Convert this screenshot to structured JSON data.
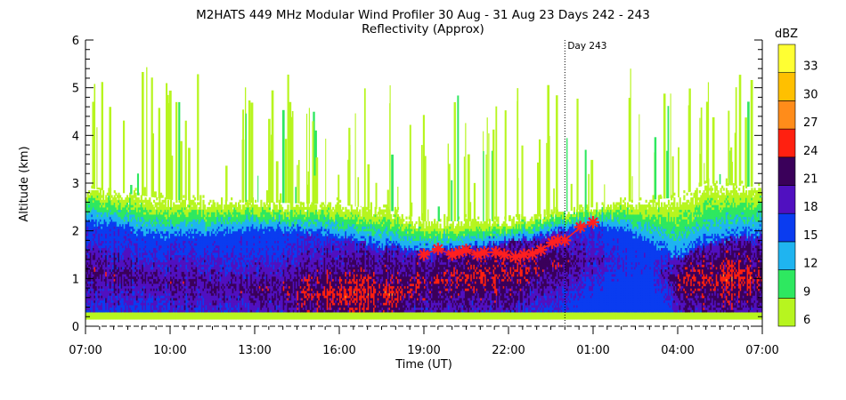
{
  "chart_data": {
    "type": "heatmap",
    "title": "M2HATS 449 MHz Modular Wind Profiler  30 Aug - 31 Aug 23 Days 242 - 243",
    "subtitle": "Reflectivity (Approx)",
    "xlabel": "Time (UT)",
    "ylabel": "Altitude (km)",
    "x_hours_range": [
      7,
      31
    ],
    "ylim": [
      0,
      6
    ],
    "x_ticks": [
      {
        "h": 7,
        "label": "07:00"
      },
      {
        "h": 10,
        "label": "10:00"
      },
      {
        "h": 13,
        "label": "13:00"
      },
      {
        "h": 16,
        "label": "16:00"
      },
      {
        "h": 19,
        "label": "19:00"
      },
      {
        "h": 22,
        "label": "22:00"
      },
      {
        "h": 25,
        "label": "01:00"
      },
      {
        "h": 28,
        "label": "04:00"
      },
      {
        "h": 31,
        "label": "07:00"
      }
    ],
    "y_ticks": [
      0,
      1,
      2,
      3,
      4,
      5,
      6
    ],
    "day_marker": {
      "h": 24,
      "label": "Day 243"
    },
    "colorbar": {
      "title": "dBZ",
      "levels": [
        6,
        9,
        12,
        15,
        18,
        21,
        24,
        27,
        30,
        33
      ],
      "colors": [
        "#b7f51f",
        "#2ee860",
        "#1fb4f0",
        "#0a3cf0",
        "#5010c0",
        "#3a005a",
        "#ff2010",
        "#ff8c1a",
        "#ffc000",
        "#ffff33"
      ]
    },
    "bl_markers": {
      "color": "#ff2020",
      "points": [
        [
          19.0,
          1.5
        ],
        [
          19.5,
          1.62
        ],
        [
          20.0,
          1.5
        ],
        [
          20.25,
          1.55
        ],
        [
          20.5,
          1.6
        ],
        [
          20.9,
          1.5
        ],
        [
          21.15,
          1.55
        ],
        [
          21.55,
          1.55
        ],
        [
          21.85,
          1.5
        ],
        [
          22.25,
          1.45
        ],
        [
          22.55,
          1.5
        ],
        [
          22.85,
          1.52
        ],
        [
          23.15,
          1.6
        ],
        [
          23.55,
          1.75
        ],
        [
          23.75,
          1.8
        ],
        [
          24.0,
          1.8
        ],
        [
          24.55,
          2.08
        ],
        [
          25.0,
          2.18
        ]
      ]
    }
  }
}
